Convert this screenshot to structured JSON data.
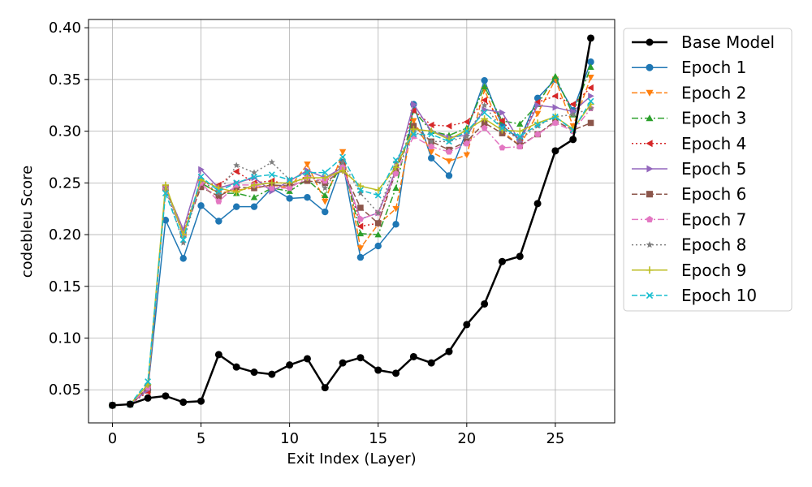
{
  "chart_data": {
    "type": "line",
    "title": "",
    "xlabel": "Exit Index (Layer)",
    "ylabel": "codebleu Score",
    "xlim": [
      -1.35,
      28.35
    ],
    "ylim": [
      0.018,
      0.408
    ],
    "xticks": [
      0,
      5,
      10,
      15,
      20,
      25
    ],
    "yticks": [
      0.05,
      0.1,
      0.15,
      0.2,
      0.25,
      0.3,
      0.35,
      0.4
    ],
    "ytick_labels": [
      "0.05",
      "0.10",
      "0.15",
      "0.20",
      "0.25",
      "0.30",
      "0.35",
      "0.40"
    ],
    "grid": true,
    "legend_position": "outside-right",
    "x": [
      0,
      1,
      2,
      3,
      4,
      5,
      6,
      7,
      8,
      9,
      10,
      11,
      12,
      13,
      14,
      15,
      16,
      17,
      18,
      19,
      20,
      21,
      22,
      23,
      24,
      25,
      26,
      27
    ],
    "series": [
      {
        "name": "Base Model",
        "color": "#000000",
        "dash": "solid",
        "marker": "circle",
        "width": 2.5,
        "values": [
          0.035,
          0.036,
          0.042,
          0.044,
          0.038,
          0.039,
          0.084,
          0.072,
          0.067,
          0.065,
          0.074,
          0.08,
          0.052,
          0.076,
          0.081,
          0.069,
          0.066,
          0.082,
          0.076,
          0.087,
          0.113,
          0.133,
          0.174,
          0.179,
          0.23,
          0.281,
          0.292,
          0.39
        ]
      },
      {
        "name": "Epoch 1",
        "color": "#1f77b4",
        "dash": "solid",
        "marker": "circle",
        "width": 1.5,
        "values": [
          0.035,
          0.036,
          0.05,
          0.214,
          0.177,
          0.228,
          0.213,
          0.227,
          0.227,
          0.245,
          0.235,
          0.236,
          0.222,
          0.27,
          0.178,
          0.189,
          0.21,
          0.326,
          0.274,
          0.257,
          0.3,
          0.349,
          0.305,
          0.292,
          0.332,
          0.35,
          0.32,
          0.367
        ]
      },
      {
        "name": "Epoch 2",
        "color": "#ff7f0e",
        "dash": "dashed",
        "marker": "triangle-down",
        "width": 1.5,
        "values": [
          0.035,
          0.036,
          0.05,
          0.245,
          0.2,
          0.25,
          0.24,
          0.243,
          0.245,
          0.248,
          0.245,
          0.268,
          0.232,
          0.28,
          0.187,
          0.21,
          0.225,
          0.31,
          0.28,
          0.271,
          0.277,
          0.34,
          0.3,
          0.286,
          0.317,
          0.35,
          0.305,
          0.352
        ]
      },
      {
        "name": "Epoch 3",
        "color": "#2ca02c",
        "dash": "dashdot",
        "marker": "triangle-up",
        "width": 1.5,
        "values": [
          0.035,
          0.036,
          0.05,
          0.245,
          0.2,
          0.25,
          0.24,
          0.24,
          0.236,
          0.245,
          0.242,
          0.253,
          0.238,
          0.27,
          0.201,
          0.2,
          0.245,
          0.32,
          0.3,
          0.296,
          0.303,
          0.343,
          0.31,
          0.307,
          0.326,
          0.353,
          0.316,
          0.362
        ]
      },
      {
        "name": "Epoch 4",
        "color": "#d62728",
        "dash": "dotted",
        "marker": "triangle-left",
        "width": 1.5,
        "values": [
          0.035,
          0.036,
          0.048,
          0.245,
          0.205,
          0.25,
          0.248,
          0.261,
          0.25,
          0.252,
          0.248,
          0.257,
          0.25,
          0.27,
          0.208,
          0.211,
          0.265,
          0.32,
          0.306,
          0.305,
          0.309,
          0.33,
          0.31,
          0.29,
          0.328,
          0.334,
          0.326,
          0.342
        ]
      },
      {
        "name": "Epoch 5",
        "color": "#9467bd",
        "dash": "solid",
        "marker": "triangle-right",
        "width": 1.5,
        "values": [
          0.035,
          0.036,
          0.05,
          0.245,
          0.205,
          0.263,
          0.245,
          0.25,
          0.255,
          0.242,
          0.252,
          0.262,
          0.255,
          0.265,
          0.215,
          0.221,
          0.262,
          0.326,
          0.3,
          0.294,
          0.296,
          0.321,
          0.318,
          0.29,
          0.325,
          0.323,
          0.319,
          0.334
        ]
      },
      {
        "name": "Epoch 6",
        "color": "#8c564b",
        "dash": "dashed",
        "marker": "square",
        "width": 1.5,
        "values": [
          0.035,
          0.036,
          0.052,
          0.245,
          0.2,
          0.246,
          0.237,
          0.246,
          0.245,
          0.248,
          0.247,
          0.252,
          0.25,
          0.263,
          0.226,
          0.211,
          0.261,
          0.305,
          0.29,
          0.282,
          0.29,
          0.308,
          0.298,
          0.286,
          0.297,
          0.31,
          0.301,
          0.308
        ]
      },
      {
        "name": "Epoch 7",
        "color": "#e377c2",
        "dash": "dashdot",
        "marker": "pentagon",
        "width": 1.5,
        "values": [
          0.035,
          0.036,
          0.052,
          0.245,
          0.2,
          0.25,
          0.232,
          0.248,
          0.248,
          0.245,
          0.245,
          0.255,
          0.252,
          0.265,
          0.215,
          0.221,
          0.259,
          0.295,
          0.285,
          0.28,
          0.288,
          0.303,
          0.284,
          0.285,
          0.297,
          0.308,
          0.3,
          0.322
        ]
      },
      {
        "name": "Epoch 8",
        "color": "#7f7f7f",
        "dash": "dotted",
        "marker": "star",
        "width": 1.5,
        "values": [
          0.035,
          0.036,
          0.055,
          0.245,
          0.192,
          0.253,
          0.24,
          0.267,
          0.26,
          0.27,
          0.253,
          0.26,
          0.245,
          0.27,
          0.24,
          0.221,
          0.27,
          0.3,
          0.29,
          0.29,
          0.295,
          0.325,
          0.302,
          0.292,
          0.305,
          0.314,
          0.316,
          0.322
        ]
      },
      {
        "name": "Epoch 9",
        "color": "#bcbd22",
        "dash": "solid",
        "marker": "plus",
        "width": 1.5,
        "values": [
          0.035,
          0.036,
          0.055,
          0.248,
          0.2,
          0.253,
          0.245,
          0.241,
          0.248,
          0.25,
          0.25,
          0.255,
          0.255,
          0.262,
          0.247,
          0.243,
          0.265,
          0.302,
          0.3,
          0.292,
          0.301,
          0.312,
          0.301,
          0.3,
          0.308,
          0.314,
          0.302,
          0.326
        ]
      },
      {
        "name": "Epoch 10",
        "color": "#17becf",
        "dash": "dashed",
        "marker": "x",
        "width": 1.5,
        "values": [
          0.035,
          0.036,
          0.058,
          0.24,
          0.195,
          0.256,
          0.242,
          0.25,
          0.256,
          0.258,
          0.253,
          0.26,
          0.26,
          0.275,
          0.243,
          0.238,
          0.272,
          0.297,
          0.297,
          0.29,
          0.3,
          0.318,
          0.303,
          0.295,
          0.306,
          0.314,
          0.301,
          0.329
        ]
      }
    ]
  }
}
